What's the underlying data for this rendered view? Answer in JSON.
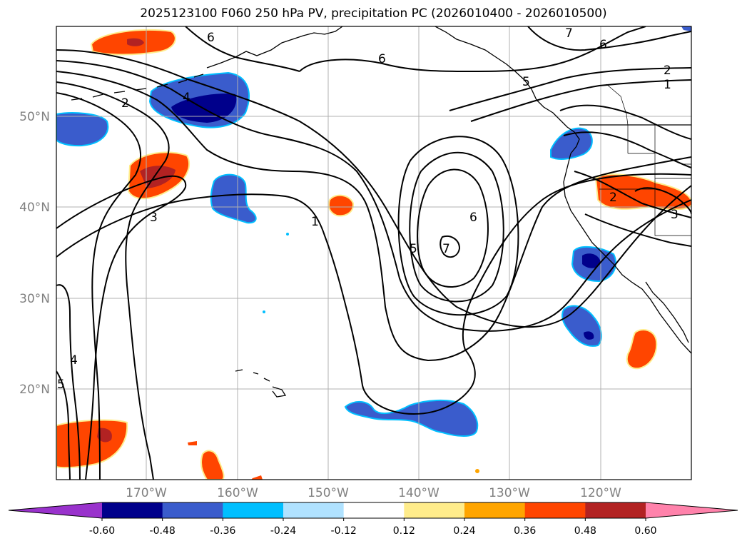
{
  "title": "2025123100 F060 250 hPa PV, precipitation PC (2026010400 - 2026010500)",
  "map": {
    "lat_ticks": [
      "50°N",
      "40°N",
      "30°N",
      "20°N"
    ],
    "lon_ticks": [
      "170°W",
      "160°W",
      "150°W",
      "140°W",
      "130°W",
      "120°W"
    ],
    "contour_labels": [
      "6",
      "7",
      "6",
      "2",
      "1",
      "4",
      "2",
      "5",
      "6",
      "3",
      "1",
      "5",
      "6",
      "7",
      "2",
      "3",
      "4",
      "5"
    ]
  },
  "colorbar": {
    "colors": [
      "#9932cc",
      "#00008b",
      "#3a5ccc",
      "#00bfff",
      "#b0e2ff",
      "#ffffff",
      "#ffec8b",
      "#ffa500",
      "#ff4500",
      "#b22222",
      "#ff82ab",
      "#ff82ab"
    ],
    "labels": [
      "-0.60",
      "-0.48",
      "-0.36",
      "-0.24",
      "-0.12",
      "0.12",
      "0.24",
      "0.36",
      "0.48",
      "0.60"
    ]
  }
}
